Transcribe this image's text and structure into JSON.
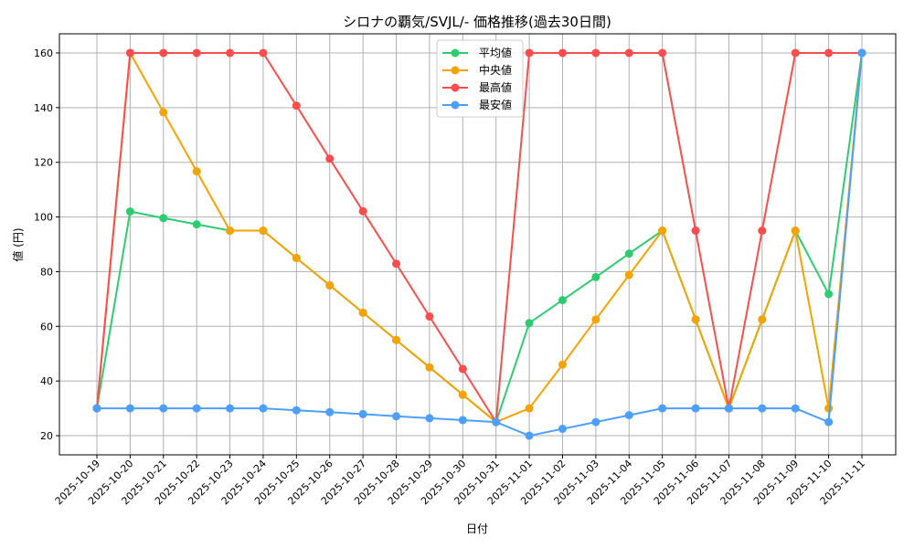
{
  "chart_data": {
    "type": "line",
    "title": "シロナの覇気/SVJL/- 価格推移(過去30日間)",
    "xlabel": "日付",
    "ylabel": "値 (円)",
    "ylim": [
      13,
      167
    ],
    "yticks": [
      20,
      40,
      60,
      80,
      100,
      120,
      140,
      160
    ],
    "grid": true,
    "legend_position": "top-center",
    "categories": [
      "2025-10-19",
      "2025-10-20",
      "2025-10-21",
      "2025-10-22",
      "2025-10-23",
      "2025-10-24",
      "2025-10-25",
      "2025-10-26",
      "2025-10-27",
      "2025-10-28",
      "2025-10-29",
      "2025-10-30",
      "2025-10-31",
      "2025-11-01",
      "2025-11-02",
      "2025-11-03",
      "2025-11-04",
      "2025-11-05",
      "2025-11-06",
      "2025-11-07",
      "2025-11-08",
      "2025-11-09",
      "2025-11-10",
      "2025-11-11"
    ],
    "series": [
      {
        "name": "平均値",
        "color": "#2ecc71",
        "values": [
          30,
          102,
          99.6,
          97.3,
          95,
          95,
          85,
          75,
          65,
          55,
          45,
          35,
          25,
          61.2,
          69.6,
          78,
          86.6,
          95,
          62.5,
          30,
          62.5,
          95,
          71.8,
          160
        ]
      },
      {
        "name": "中央値",
        "color": "#f5a300",
        "values": [
          30,
          160,
          138.3,
          116.7,
          95,
          95,
          85,
          75,
          65,
          55,
          45,
          35,
          25,
          30,
          46,
          62.5,
          78.8,
          95,
          62.5,
          30,
          62.5,
          95,
          30,
          160
        ]
      },
      {
        "name": "最高値",
        "color": "#ff4d4d",
        "values": [
          30,
          160,
          160,
          160,
          160,
          160,
          140.7,
          121.3,
          102.1,
          82.9,
          63.6,
          44.4,
          25,
          160,
          160,
          160,
          160,
          160,
          95,
          30,
          95,
          160,
          160,
          160
        ]
      },
      {
        "name": "最安値",
        "color": "#4d9fff",
        "values": [
          30,
          30,
          30,
          30,
          30,
          30,
          29.3,
          28.6,
          27.9,
          27.1,
          26.4,
          25.7,
          25,
          20,
          22.5,
          25,
          27.5,
          30,
          30,
          30,
          30,
          30,
          25,
          160
        ]
      }
    ]
  }
}
